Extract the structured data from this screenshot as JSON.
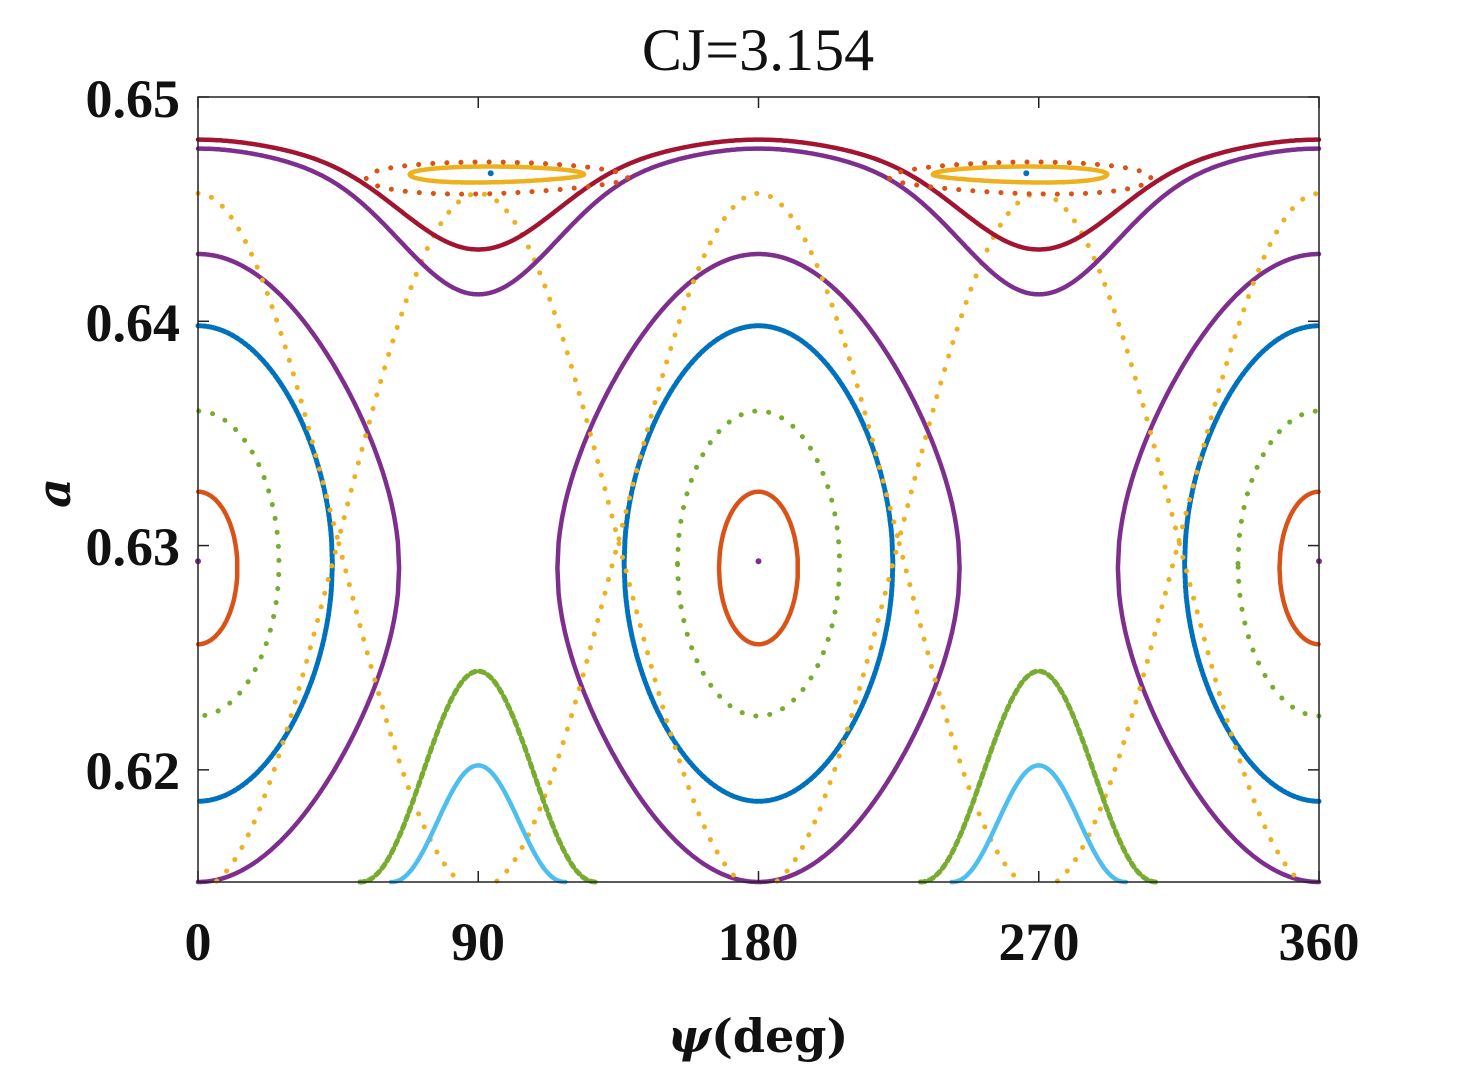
{
  "chart_data": {
    "type": "scatter",
    "title": "CJ=3.154",
    "xlabel_symbol": "ψ",
    "xlabel_unit": "(deg)",
    "ylabel": "a",
    "xlim": [
      0,
      360
    ],
    "ylim": [
      0.615,
      0.65
    ],
    "xticks": [
      "0",
      "90",
      "180",
      "270",
      "360"
    ],
    "yticks": [
      "0.62",
      "0.63",
      "0.64",
      "0.65"
    ],
    "grid": false,
    "legend": "none",
    "series": [
      {
        "color": "#d95319",
        "style": "solid",
        "kind": "circulation",
        "center": 180,
        "a0": 0.629,
        "amp": 0.0034
      },
      {
        "color": "#77ac30",
        "style": "dotted",
        "kind": "circulation",
        "center": 180,
        "a0": 0.6292,
        "amp": 0.0068
      },
      {
        "color": "#0072bd",
        "style": "dense",
        "kind": "circulation",
        "center": 180,
        "a0": 0.6292,
        "amp": 0.0106
      },
      {
        "color": "#7e2f8e",
        "style": "solid",
        "kind": "circulation",
        "center": 180,
        "a0": 0.629,
        "amp": 0.014
      },
      {
        "color": "#edb120",
        "style": "dotted",
        "kind": "separatrix",
        "a0": 0.6302,
        "amp": 0.0155
      },
      {
        "color": "#7e2f8e",
        "style": "solid",
        "kind": "passing_upper",
        "base": 0.6412,
        "peak": 0.6464
      },
      {
        "color": "#a2142f",
        "style": "solid",
        "kind": "passing_upper",
        "base": 0.6432,
        "peak": 0.647
      },
      {
        "color": "#77ac30",
        "style": "dashed",
        "kind": "passing_lower",
        "peak": 0.6244,
        "edge": 0.615
      },
      {
        "color": "#4dbeee",
        "style": "solid",
        "kind": "passing_lower",
        "peak": 0.6202,
        "edge": 0.615
      },
      {
        "color": "#edb120",
        "style": "solid",
        "kind": "island",
        "a_top": 0.6469,
        "a_bottom": 0.6462
      },
      {
        "color": "#d95319",
        "style": "dotted",
        "kind": "island",
        "a_top": 0.6471,
        "a_bottom": 0.6457
      },
      {
        "color": "#7e2f8e",
        "style": "point",
        "kind": "center",
        "points": [
          [
            0,
            0.6293
          ],
          [
            180,
            0.6293
          ],
          [
            360,
            0.6293
          ]
        ]
      },
      {
        "color": "#0072bd",
        "style": "point",
        "kind": "center",
        "points": [
          [
            94,
            0.6466
          ],
          [
            266,
            0.6466
          ]
        ]
      }
    ]
  }
}
